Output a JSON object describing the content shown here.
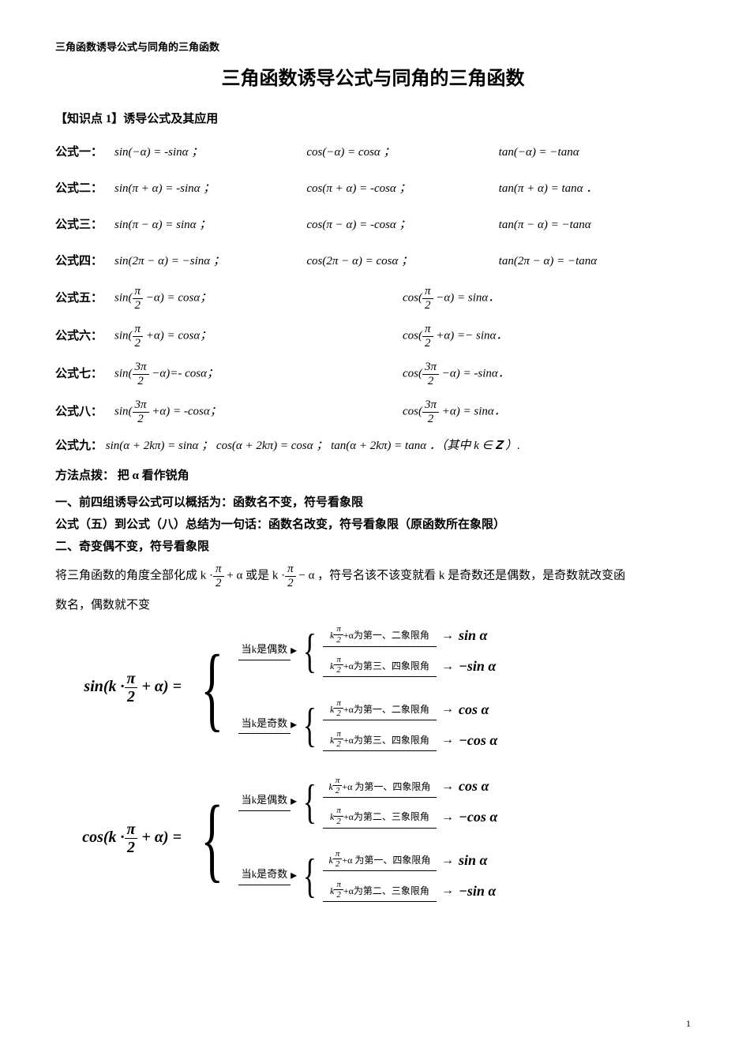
{
  "header_small": "三角函数诱导公式与同角的三角函数",
  "title": "三角函数诱导公式与同角的三角函数",
  "section_heading": "【知识点 1】诱导公式及其应用",
  "formulas": {
    "row1": {
      "label": "公式一：",
      "c1": "sin(−α) = -sinα ；",
      "c2": "cos(−α) = cosα  ；",
      "c3": "tan(−α) = −tanα"
    },
    "row2": {
      "label": "公式二：",
      "c1": "sin(π + α) = -sinα ；",
      "c2": "cos(π + α) = -cosα ；",
      "c3": "tan(π + α) = tanα ．"
    },
    "row3": {
      "label": "公式三：",
      "c1": "sin(π − α) = sinα ；",
      "c2": "cos(π − α) = -cosα ；",
      "c3": "tan(π − α) = −tanα"
    },
    "row4": {
      "label": "公式四：",
      "c1": "sin(2π − α) = −sinα ；",
      "c2": "cos(2π − α) = cosα ；",
      "c3": "tan(2π − α) = −tanα"
    },
    "row5": {
      "label": "公式五：",
      "pre1": "sin(",
      "frac_n": "π",
      "frac_d": "2",
      "post1": " −α) = cosα；",
      "pre2": "cos(",
      "post2": " −α) = sinα．"
    },
    "row6": {
      "label": "公式六：",
      "pre1": "sin(",
      "frac_n": "π",
      "frac_d": "2",
      "post1": " +α) = cosα；",
      "pre2": "cos(",
      "post2": " +α) =− sinα．"
    },
    "row7": {
      "label": "公式七：",
      "pre1": "sin(",
      "frac_n": "3π",
      "frac_d": "2",
      "post1": " −α)=- cosα；",
      "pre2": "cos(",
      "post2": " −α) = -sinα．"
    },
    "row8": {
      "label": "公式八：",
      "pre1": "sin(",
      "frac_n": "3π",
      "frac_d": "2",
      "post1": " +α) = -cosα；",
      "pre2": "cos(",
      "post2": " +α) = sinα．"
    },
    "row9": {
      "label": "公式九：",
      "text": "sin(α + 2kπ) = sinα ；  cos(α + 2kπ) = cosα ；  tan(α + 2kπ) = tanα ．（其中 k ∈ 𝐙 ）."
    }
  },
  "tips_heading": "方法点拨：  把 α 看作锐角",
  "summary1": "一、前四组诱导公式可以概括为：函数名不变，符号看象限",
  "summary2": "公式（五）到公式（八）总结为一句话：函数名改变，符号看象限（原函数所在象限）",
  "summary3": "二、奇变偶不变，符号看象限",
  "body_text_pre": "将三角函数的角度全部化成 k ·",
  "body_text_mid1": " + α 或是 k ·",
  "body_text_mid2": " − α ，符号名该不该变就看 k 是奇数还是偶数，是奇数就改变函",
  "body_text_line2": "数名，偶数就不变",
  "frac_pi2": {
    "num": "π",
    "den": "2"
  },
  "diagram": {
    "even_label": "当k是偶数",
    "odd_label": "当k是奇数",
    "cond_12": "+α为第一、二象限角",
    "cond_34": "+α为第三、四象限角",
    "cond_14": "+α 为第一、四象限角",
    "cond_23": "+α为第二、三象限角",
    "cond_prefix_k": "k",
    "sin": {
      "lhs_pre": "sin(k ·",
      "lhs_post": " + α) =",
      "r1": "sin α",
      "r2": "−sin α",
      "r3": "cos α",
      "r4": "−cos α"
    },
    "cos": {
      "lhs_pre": "cos(k ·",
      "lhs_post": " + α) =",
      "r1": "cos α",
      "r2": "−cos α",
      "r3": "sin α",
      "r4": "−sin α"
    }
  },
  "page_number": "1",
  "colors": {
    "text": "#000000",
    "bg": "#ffffff",
    "rule": "#000000"
  }
}
